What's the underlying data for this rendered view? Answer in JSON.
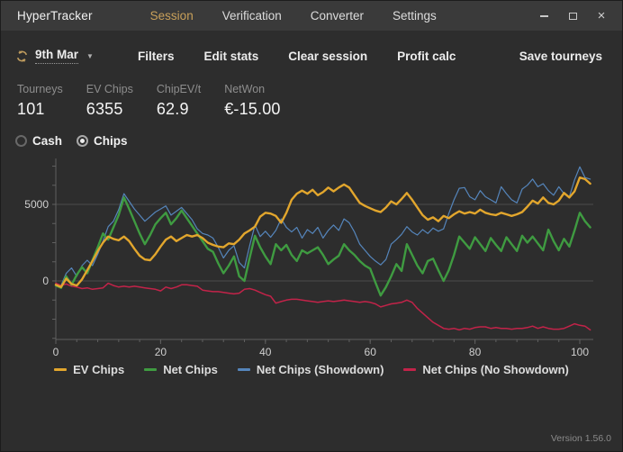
{
  "window": {
    "title": "HyperTracker",
    "controls": {
      "close_glyph": "×"
    }
  },
  "nav": {
    "tabs": [
      {
        "label": "Session",
        "active": true
      },
      {
        "label": "Verification",
        "active": false
      },
      {
        "label": "Converter",
        "active": false
      },
      {
        "label": "Settings",
        "active": false
      }
    ]
  },
  "toolbar": {
    "date": "9th Mar",
    "caret": "▼",
    "buttons": [
      {
        "label": "Filters"
      },
      {
        "label": "Edit stats"
      },
      {
        "label": "Clear session"
      },
      {
        "label": "Profit calc"
      }
    ],
    "save_label": "Save tourneys"
  },
  "stats": [
    {
      "label": "Tourneys",
      "value": "101"
    },
    {
      "label": "EV Chips",
      "value": "6355"
    },
    {
      "label": "ChipEV/t",
      "value": "62.9"
    },
    {
      "label": "NetWon",
      "value": "€-15.00"
    }
  ],
  "mode": {
    "options": [
      {
        "label": "Cash",
        "selected": false
      },
      {
        "label": "Chips",
        "selected": true
      }
    ]
  },
  "chart_data": {
    "type": "line",
    "title": "",
    "xlabel": "",
    "ylabel": "",
    "xlim": [
      0,
      103
    ],
    "ylim": [
      -3800,
      7900
    ],
    "xticks_labeled": [
      0,
      20,
      40,
      60,
      80,
      100
    ],
    "x_minor_step": 4,
    "yticks_labeled": [
      0,
      5000
    ],
    "y_minor_step": 1250,
    "grid": "horizontal-at-labeled-yticks",
    "legend_position": "bottom-center",
    "background": "#2d2d2d",
    "gridline_color": "#4a4a4a",
    "axis_color": "#606060",
    "series": [
      {
        "name": "EV Chips",
        "color": "#e2a62d",
        "stroke_width": 2.4,
        "values": [
          -250,
          -400,
          150,
          -200,
          -300,
          100,
          700,
          1300,
          1950,
          2500,
          2900,
          2750,
          2650,
          2900,
          2600,
          2100,
          1650,
          1400,
          1350,
          1750,
          2250,
          2700,
          2900,
          2600,
          2800,
          3000,
          2900,
          3000,
          2800,
          2500,
          2350,
          2250,
          2200,
          2450,
          2400,
          2700,
          3100,
          3300,
          3550,
          4200,
          4450,
          4400,
          4250,
          3800,
          4450,
          5300,
          5700,
          5900,
          5700,
          5950,
          5600,
          5800,
          6100,
          5850,
          6100,
          6300,
          6100,
          5600,
          5100,
          4900,
          4750,
          4600,
          4500,
          4800,
          5200,
          5000,
          5350,
          5750,
          5300,
          4800,
          4300,
          4000,
          4150,
          3900,
          4250,
          4100,
          4350,
          4550,
          4400,
          4500,
          4400,
          4650,
          4450,
          4350,
          4300,
          4450,
          4350,
          4250,
          4350,
          4500,
          4850,
          5250,
          5050,
          5450,
          5100,
          5000,
          5250,
          5750,
          5450,
          5850,
          6750,
          6650,
          6350
        ]
      },
      {
        "name": "Net Chips",
        "color": "#3f9b41",
        "stroke_width": 2.4,
        "values": [
          -300,
          -450,
          300,
          -250,
          400,
          900,
          500,
          1350,
          2200,
          3100,
          2700,
          3500,
          4300,
          5450,
          4700,
          3900,
          3100,
          2400,
          3000,
          3700,
          4100,
          4450,
          3700,
          4100,
          4600,
          4100,
          3600,
          3100,
          2600,
          2100,
          1900,
          1150,
          500,
          1000,
          1600,
          300,
          0,
          1500,
          2950,
          2200,
          1600,
          1100,
          2400,
          2000,
          2350,
          1700,
          1300,
          2000,
          1800,
          2000,
          2200,
          1700,
          1100,
          1400,
          1650,
          2400,
          2000,
          1700,
          1300,
          1000,
          800,
          -100,
          -950,
          -400,
          300,
          1100,
          650,
          2400,
          1700,
          1000,
          500,
          1300,
          1450,
          700,
          0,
          700,
          1700,
          2900,
          2500,
          2100,
          2850,
          2400,
          1950,
          2800,
          2350,
          1950,
          2850,
          2400,
          1950,
          2950,
          2500,
          2900,
          2450,
          2000,
          3350,
          2600,
          2000,
          2750,
          2250,
          3300,
          4450,
          3900,
          3500
        ]
      },
      {
        "name": "Net Chips (Showdown)",
        "color": "#5585bb",
        "stroke_width": 1.2,
        "values": [
          -200,
          -300,
          500,
          850,
          300,
          1000,
          1350,
          1000,
          1750,
          2600,
          3550,
          3900,
          4650,
          5700,
          5200,
          4700,
          4300,
          3900,
          4200,
          4500,
          4700,
          4900,
          4300,
          4550,
          4800,
          4400,
          4000,
          3400,
          3100,
          3000,
          2800,
          2200,
          1500,
          2000,
          2300,
          1200,
          850,
          2300,
          3650,
          2900,
          3250,
          2850,
          3300,
          4050,
          3500,
          3200,
          3500,
          2800,
          3350,
          3100,
          3500,
          2800,
          3300,
          3650,
          3300,
          4050,
          3800,
          3200,
          2400,
          2000,
          1600,
          1300,
          1050,
          1400,
          2400,
          2700,
          3050,
          3550,
          3200,
          3000,
          3350,
          3100,
          3450,
          3250,
          3400,
          4400,
          5300,
          6050,
          6100,
          5500,
          5300,
          5900,
          5500,
          5300,
          5100,
          6150,
          5700,
          5300,
          5100,
          6000,
          6250,
          6650,
          6150,
          6350,
          5900,
          5600,
          6150,
          5700,
          5500,
          6600,
          7450,
          6750,
          6650
        ]
      },
      {
        "name": "Net Chips (No Showdown)",
        "color": "#c22349",
        "stroke_width": 1.5,
        "values": [
          -150,
          -300,
          -200,
          -350,
          -400,
          -500,
          -450,
          -550,
          -500,
          -450,
          -150,
          -300,
          -400,
          -350,
          -400,
          -350,
          -400,
          -450,
          -500,
          -550,
          -650,
          -400,
          -500,
          -400,
          -250,
          -250,
          -300,
          -350,
          -600,
          -650,
          -700,
          -700,
          -750,
          -800,
          -850,
          -800,
          -550,
          -500,
          -600,
          -750,
          -900,
          -1000,
          -1450,
          -1350,
          -1250,
          -1200,
          -1200,
          -1250,
          -1300,
          -1350,
          -1400,
          -1350,
          -1300,
          -1350,
          -1300,
          -1250,
          -1300,
          -1350,
          -1400,
          -1350,
          -1400,
          -1500,
          -1700,
          -1600,
          -1500,
          -1450,
          -1400,
          -1250,
          -1400,
          -1800,
          -2100,
          -2400,
          -2700,
          -2900,
          -3100,
          -3150,
          -3100,
          -3200,
          -3100,
          -3150,
          -3050,
          -3000,
          -3000,
          -3100,
          -3050,
          -3100,
          -3100,
          -3150,
          -3100,
          -3100,
          -3050,
          -2950,
          -3100,
          -3000,
          -3100,
          -3150,
          -3150,
          -3100,
          -2950,
          -2800,
          -2900,
          -2950,
          -3200
        ]
      }
    ]
  },
  "colors": {
    "accent_gold": "#c9a05a",
    "titlebar_bg": "#3a3a3a",
    "body_bg": "#2d2d2d"
  },
  "footer": {
    "version": "Version 1.56.0"
  }
}
